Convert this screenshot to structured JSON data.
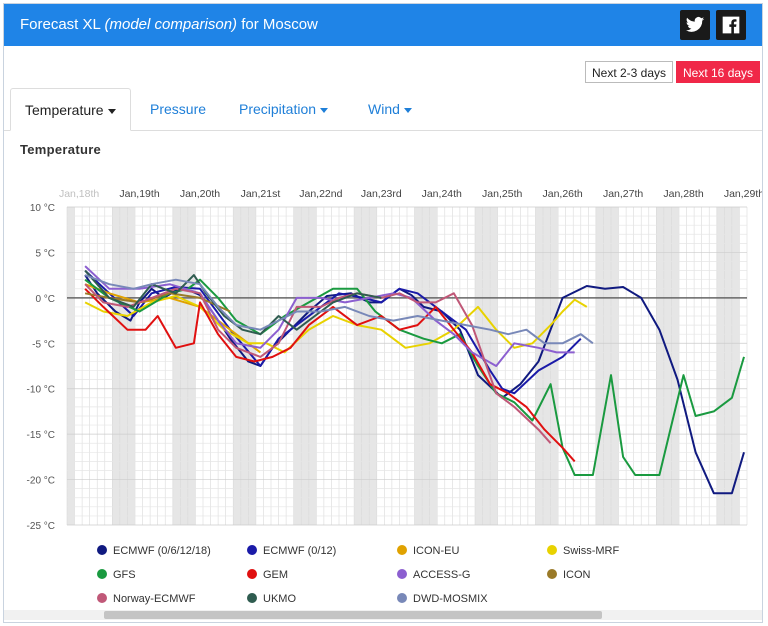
{
  "header": {
    "title_prefix": "Forecast XL",
    "title_italic": "(model comparison)",
    "title_suffix": "for Moscow",
    "twitter_icon": "twitter-icon",
    "facebook_icon": "facebook-icon"
  },
  "range_buttons": [
    "Next 2-3 days",
    "Next 16 days"
  ],
  "tabs": [
    {
      "label": "Temperature",
      "active": true
    },
    {
      "label": "Pressure",
      "active": false
    },
    {
      "label": "Precipitation",
      "active": false
    },
    {
      "label": "Wind",
      "active": false
    }
  ],
  "colors": {
    "accent": "#1f84e7",
    "active_range": "#f02848"
  },
  "chart_data": {
    "type": "line",
    "title": "Temperature",
    "unit": "°C",
    "ylim": [
      -25,
      10
    ],
    "yticks": [
      10,
      5,
      0,
      -5,
      -10,
      -15,
      -20,
      -25
    ],
    "ytick_labels": [
      "10 °C",
      "5 °C",
      "0 °C",
      "-5 °C",
      "-10 °C",
      "-15 °C",
      "-20 °C",
      "-25 °C"
    ],
    "xlim": [
      -0.2,
      11.05
    ],
    "xticks": [
      0,
      1,
      2,
      3,
      4,
      5,
      6,
      7,
      8,
      9,
      10,
      11
    ],
    "xtick_labels": [
      "Jan,18th",
      "Jan,19th",
      "Jan,20th",
      "Jan,21st",
      "Jan,22nd",
      "Jan,23rd",
      "Jan,24th",
      "Jan,25th",
      "Jan,26th",
      "Jan,27th",
      "Jan,28th",
      "Jan,29th"
    ],
    "grid": true,
    "legend_position": "bottom",
    "series": [
      {
        "name": "ECMWF (0/6/12/18)",
        "color": "#101a80",
        "x": [
          0.1,
          0.3,
          0.6,
          0.85,
          1.0,
          1.2,
          1.4,
          1.7,
          2.0,
          2.2,
          2.5,
          2.8,
          3.0,
          3.2,
          3.5,
          3.8,
          4.1,
          4.5,
          4.8,
          5.0,
          5.3,
          5.5,
          5.7,
          6.0,
          6.3,
          6.6,
          7.0,
          7.3,
          7.6,
          8.0,
          8.4,
          8.7,
          9.0,
          9.3,
          9.6,
          9.9,
          10.2,
          10.5,
          10.8,
          11.0
        ],
        "values": [
          2.5,
          0.5,
          -1.5,
          -2.5,
          -0.5,
          1.0,
          0.0,
          1.2,
          0.3,
          -1.5,
          -4.5,
          -7.0,
          -7.5,
          -5.5,
          -3.5,
          -1.5,
          0.2,
          0.5,
          -0.5,
          -0.5,
          1.0,
          0.3,
          -1.0,
          -1.5,
          -3.5,
          -8.5,
          -11.0,
          -9.5,
          -7.0,
          0.0,
          1.3,
          1.0,
          1.2,
          0.0,
          -3.5,
          -9.0,
          -17.0,
          -21.5,
          -21.5,
          -17.0
        ]
      },
      {
        "name": "ECMWF (0/12)",
        "color": "#1a1aa8",
        "x": [
          0.1,
          0.5,
          0.9,
          1.2,
          1.6,
          2.0,
          2.5,
          3.0,
          3.3,
          3.6,
          4.0,
          4.3,
          4.7,
          5.0,
          5.3,
          5.6,
          6.0,
          6.4,
          6.8,
          7.0,
          7.2,
          7.6,
          8.0,
          8.3
        ],
        "values": [
          3.0,
          0.5,
          -2.0,
          0.5,
          1.2,
          1.0,
          -3.5,
          -7.5,
          -4.5,
          -3.0,
          -1.0,
          0.5,
          0.0,
          -0.5,
          1.0,
          0.5,
          -1.5,
          -3.5,
          -8.0,
          -10.0,
          -10.5,
          -8.0,
          -6.5,
          -4.5
        ]
      },
      {
        "name": "ICON-EU",
        "color": "#e0a200",
        "x": [
          0.1,
          0.5,
          1.0,
          1.5,
          2.0,
          2.5,
          3.0
        ],
        "values": [
          1.5,
          0.5,
          -0.5,
          0.0,
          -1.0,
          -3.5,
          -6.0
        ]
      },
      {
        "name": "Swiss-MRF",
        "color": "#e8d200",
        "x": [
          0.1,
          0.4,
          0.8,
          1.2,
          1.6,
          2.0,
          2.4,
          2.8,
          3.1,
          3.4,
          3.8,
          4.2,
          4.6,
          5.0,
          5.4,
          5.8,
          6.2,
          6.6,
          6.9,
          7.2,
          7.5,
          7.8,
          8.0,
          8.2,
          8.4
        ],
        "values": [
          -0.5,
          -1.5,
          -2.0,
          -0.5,
          0.2,
          -1.0,
          -3.5,
          -5.0,
          -5.0,
          -6.0,
          -3.5,
          -2.0,
          -3.0,
          -3.5,
          -5.5,
          -5.0,
          -3.5,
          -1.0,
          -3.5,
          -5.5,
          -5.0,
          -3.0,
          -1.5,
          -0.2,
          -1.0
        ]
      },
      {
        "name": "GFS",
        "color": "#1a9a40",
        "x": [
          0.1,
          0.5,
          1.0,
          1.5,
          1.8,
          2.0,
          2.3,
          2.6,
          3.0,
          3.4,
          3.8,
          4.2,
          4.6,
          4.9,
          5.3,
          5.7,
          6.0,
          6.3,
          6.6,
          6.9,
          7.2,
          7.5,
          7.8,
          8.0,
          8.2,
          8.5,
          8.8,
          9.0,
          9.2,
          9.6,
          10.0,
          10.2,
          10.5,
          10.8,
          11.0
        ],
        "values": [
          2.0,
          0.0,
          -1.5,
          0.5,
          1.0,
          2.0,
          0.0,
          -2.5,
          -4.0,
          -2.0,
          -0.5,
          1.0,
          1.0,
          -1.5,
          -3.5,
          -4.5,
          -5.0,
          -4.0,
          -7.5,
          -10.5,
          -11.5,
          -13.5,
          -9.5,
          -16.5,
          -19.5,
          -19.5,
          -8.5,
          -17.5,
          -19.5,
          -19.5,
          -8.5,
          -13.0,
          -12.5,
          -11.0,
          -6.5
        ]
      },
      {
        "name": "GEM",
        "color": "#e01010",
        "x": [
          0.1,
          0.4,
          0.8,
          1.1,
          1.3,
          1.6,
          1.9,
          2.0,
          2.3,
          2.6,
          2.9,
          3.2,
          3.5,
          3.8,
          4.2,
          4.6,
          5.0,
          5.3,
          5.6,
          5.9,
          6.2,
          6.5,
          6.8,
          7.1,
          7.4,
          7.7,
          8.0,
          8.2
        ],
        "values": [
          1.0,
          -1.0,
          -3.5,
          -3.5,
          -2.0,
          -5.5,
          -5.0,
          -0.5,
          -4.0,
          -6.5,
          -7.0,
          -6.5,
          -5.5,
          -3.0,
          -1.0,
          -3.0,
          -2.0,
          -3.5,
          -3.0,
          -1.0,
          -3.5,
          -6.0,
          -9.5,
          -10.5,
          -12.0,
          -14.5,
          -16.5,
          -18.0
        ]
      },
      {
        "name": "ACCESS-G",
        "color": "#8c5fd0",
        "x": [
          0.1,
          0.5,
          1.0,
          1.5,
          2.0,
          2.3,
          2.6,
          3.0,
          3.3,
          3.6,
          4.0,
          4.4,
          4.8,
          5.2,
          5.5,
          5.9,
          6.2,
          6.5,
          6.9,
          7.2,
          7.6,
          7.9,
          8.2
        ],
        "values": [
          3.5,
          1.0,
          1.0,
          1.5,
          0.5,
          -2.5,
          -5.0,
          -5.5,
          -3.5,
          0.0,
          0.0,
          -0.5,
          0.0,
          0.5,
          0.0,
          -2.5,
          -4.0,
          -6.0,
          -7.5,
          -5.0,
          -5.5,
          -6.0,
          -6.0
        ]
      },
      {
        "name": "ICON",
        "color": "#9a7a28",
        "x": [
          0.1,
          0.5,
          1.0,
          1.5,
          2.0,
          2.5
        ],
        "values": [
          0.5,
          0.0,
          -0.5,
          0.5,
          0.0,
          -1.5
        ]
      },
      {
        "name": "Norway-ECMWF",
        "color": "#c05878",
        "x": [
          0.1,
          0.4,
          0.8,
          1.2,
          1.6,
          2.0,
          2.3,
          2.6,
          3.0,
          3.3,
          3.6,
          4.0,
          4.3,
          4.6,
          5.0,
          5.3,
          5.6,
          5.9,
          6.2,
          6.5,
          6.9,
          7.2,
          7.6,
          7.8
        ],
        "values": [
          1.5,
          -0.5,
          -1.0,
          0.0,
          1.0,
          0.5,
          -3.5,
          -5.5,
          -6.5,
          -5.0,
          -1.0,
          -1.0,
          0.0,
          0.5,
          0.0,
          0.5,
          -0.5,
          -0.5,
          0.5,
          -3.0,
          -10.5,
          -12.0,
          -14.5,
          -16.0
        ]
      },
      {
        "name": "UKMO",
        "color": "#2f5c50",
        "x": [
          0.1,
          0.5,
          0.9,
          1.2,
          1.6,
          1.9,
          2.1,
          2.4,
          2.7,
          3.0,
          3.3,
          3.6,
          3.9,
          4.2,
          4.6,
          5.0
        ],
        "values": [
          3.0,
          0.0,
          -1.0,
          1.5,
          0.5,
          2.5,
          0.5,
          -2.0,
          -3.5,
          -4.0,
          -2.0,
          -3.5,
          -2.0,
          -0.5,
          0.5,
          0.0
        ]
      },
      {
        "name": "DWD-MOSMIX",
        "color": "#7888b8",
        "x": [
          0.1,
          0.5,
          0.9,
          1.2,
          1.6,
          2.0,
          2.3,
          2.6,
          3.0,
          3.3,
          3.6,
          4.0,
          4.4,
          4.8,
          5.2,
          5.6,
          6.0,
          6.4,
          6.8,
          7.1,
          7.4,
          7.7,
          8.0,
          8.3,
          8.5
        ],
        "values": [
          2.5,
          1.5,
          1.0,
          1.5,
          2.0,
          1.5,
          -1.0,
          -3.0,
          -3.5,
          -2.5,
          -1.5,
          -1.5,
          -1.0,
          -2.0,
          -2.5,
          -2.0,
          -2.5,
          -3.0,
          -3.5,
          -4.0,
          -3.5,
          -5.0,
          -5.0,
          -4.0,
          -5.0
        ]
      }
    ]
  }
}
